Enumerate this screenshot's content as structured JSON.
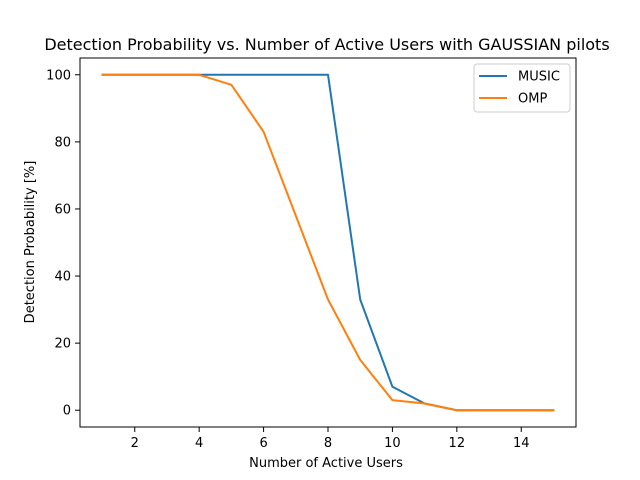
{
  "chart_data": {
    "type": "line",
    "title": "Detection Probability vs. Number of Active Users with GAUSSIAN pilots",
    "xlabel": "Number of Active Users",
    "ylabel": "Detection Probability [%]",
    "x": [
      1,
      2,
      3,
      4,
      5,
      6,
      7,
      8,
      9,
      10,
      11,
      12,
      13,
      14,
      15
    ],
    "xlim": [
      0.3,
      15.7
    ],
    "ylim": [
      -5,
      105
    ],
    "xticks": [
      2,
      4,
      6,
      8,
      10,
      12,
      14
    ],
    "yticks": [
      0,
      20,
      40,
      60,
      80,
      100
    ],
    "xtick_labels": [
      "2",
      "4",
      "6",
      "8",
      "10",
      "12",
      "14"
    ],
    "ytick_labels": [
      "0",
      "20",
      "40",
      "60",
      "80",
      "100"
    ],
    "grid": false,
    "legend_position": "top-right",
    "series": [
      {
        "name": "MUSIC",
        "color": "#1f77b4",
        "values": [
          100,
          100,
          100,
          100,
          100,
          100,
          100,
          100,
          33,
          7,
          2,
          0,
          0,
          0,
          0
        ]
      },
      {
        "name": "OMP",
        "color": "#ff7f0e",
        "values": [
          100,
          100,
          100,
          100,
          97,
          83,
          58,
          33,
          15,
          3,
          2,
          0,
          0,
          0,
          0
        ]
      }
    ]
  }
}
